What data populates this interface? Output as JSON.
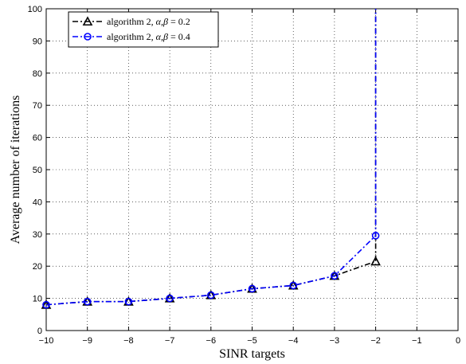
{
  "chart_data": {
    "type": "line",
    "xlabel": "SINR targets",
    "ylabel": "Average number of iterations",
    "xlim": [
      -10,
      0
    ],
    "ylim": [
      0,
      100
    ],
    "xticks": [
      -10,
      -9,
      -8,
      -7,
      -6,
      -5,
      -4,
      -3,
      -2,
      -1,
      0
    ],
    "yticks": [
      0,
      10,
      20,
      30,
      40,
      50,
      60,
      70,
      80,
      90,
      100
    ],
    "grid": true,
    "legend_position": "top-left",
    "x": [
      -10,
      -9,
      -8,
      -7,
      -6,
      -5,
      -4,
      -3,
      -2
    ],
    "series": [
      {
        "name_prefix": "algorithm 2, ",
        "name_symbol": "α,β",
        "name_suffix": " = 0.2",
        "color": "#000000",
        "marker": "triangle",
        "line_style": "dash-dot",
        "values": [
          8,
          9,
          9,
          10,
          11,
          13,
          14,
          17,
          21.5
        ],
        "vertical_to": 100
      },
      {
        "name_prefix": "algorithm 2, ",
        "name_symbol": "α,β",
        "name_suffix": " = 0.4",
        "color": "#0000ff",
        "marker": "circle",
        "line_style": "dash-dot",
        "values": [
          8,
          9,
          9,
          10,
          11,
          13,
          14,
          17,
          29.5
        ],
        "vertical_to": 100
      }
    ]
  }
}
